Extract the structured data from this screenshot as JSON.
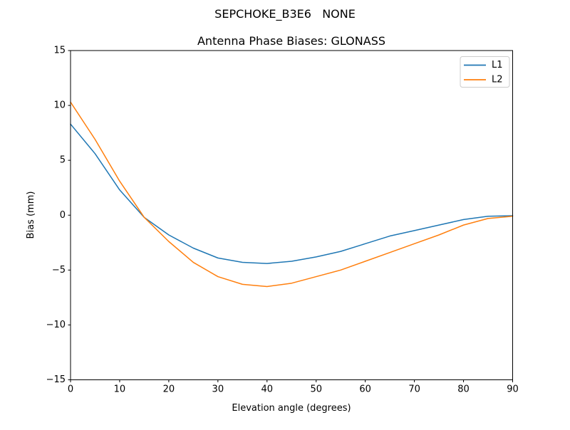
{
  "figure": {
    "background": "#ffffff",
    "text_color": "#000000"
  },
  "chart_data": {
    "type": "line",
    "suptitle": "SEPCHOKE_B3E6   NONE",
    "title": "Antenna Phase Biases: GLONASS",
    "xlabel": "Elevation angle (degrees)",
    "ylabel": "Bias (mm)",
    "xlim": [
      0,
      90
    ],
    "ylim": [
      -15,
      15
    ],
    "xticks": [
      0,
      10,
      20,
      30,
      40,
      50,
      60,
      70,
      80,
      90
    ],
    "yticks": [
      -15,
      -10,
      -5,
      0,
      5,
      10,
      15
    ],
    "grid": false,
    "legend_position": "upper right",
    "legend_border_color": "#cccccc",
    "x": [
      0,
      5,
      10,
      15,
      20,
      25,
      30,
      35,
      40,
      45,
      50,
      55,
      60,
      65,
      70,
      75,
      80,
      85,
      90
    ],
    "series": [
      {
        "name": "L1",
        "color": "#1f77b4",
        "values": [
          8.3,
          5.6,
          2.3,
          -0.2,
          -1.8,
          -3.0,
          -3.9,
          -4.3,
          -4.4,
          -4.2,
          -3.8,
          -3.3,
          -2.6,
          -1.9,
          -1.4,
          -0.9,
          -0.4,
          -0.1,
          -0.05
        ]
      },
      {
        "name": "L2",
        "color": "#ff7f0e",
        "values": [
          10.3,
          6.9,
          3.1,
          -0.2,
          -2.4,
          -4.3,
          -5.6,
          -6.3,
          -6.5,
          -6.2,
          -5.6,
          -5.0,
          -4.2,
          -3.4,
          -2.6,
          -1.8,
          -0.9,
          -0.3,
          -0.1
        ]
      }
    ]
  }
}
